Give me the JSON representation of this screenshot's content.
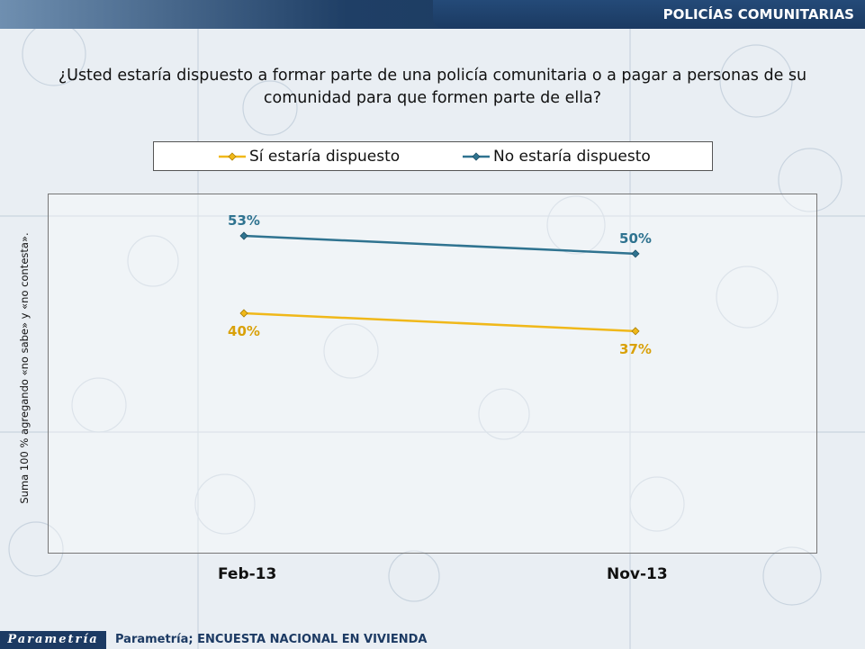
{
  "header": {
    "section_title": "POLICÍAS COMUNITARIAS"
  },
  "question": "¿Usted estaría dispuesto a formar parte de una policía comunitaria o a pagar a personas de su comunidad para que formen parte de ella?",
  "side_note": "Suma 100 %  agregando «no sabe» y «no contesta».",
  "footer": {
    "logo_text": "Parametría",
    "source": "Parametría; ENCUESTA NACIONAL  EN VIVIENDA"
  },
  "colors": {
    "series_si": "#f0b81a",
    "series_no": "#2f7390",
    "label_si": "#d9a10a",
    "label_no": "#2f7390"
  },
  "chart_data": {
    "type": "line",
    "categories": [
      "Feb-13",
      "Nov-13"
    ],
    "series": [
      {
        "name": "Sí estaría dispuesto",
        "values": [
          40,
          37
        ],
        "labels": [
          "40%",
          "37%"
        ]
      },
      {
        "name": "No estaría dispuesto",
        "values": [
          53,
          50
        ],
        "labels": [
          "53%",
          "50%"
        ]
      }
    ],
    "grid": false,
    "legend_position": "top"
  }
}
